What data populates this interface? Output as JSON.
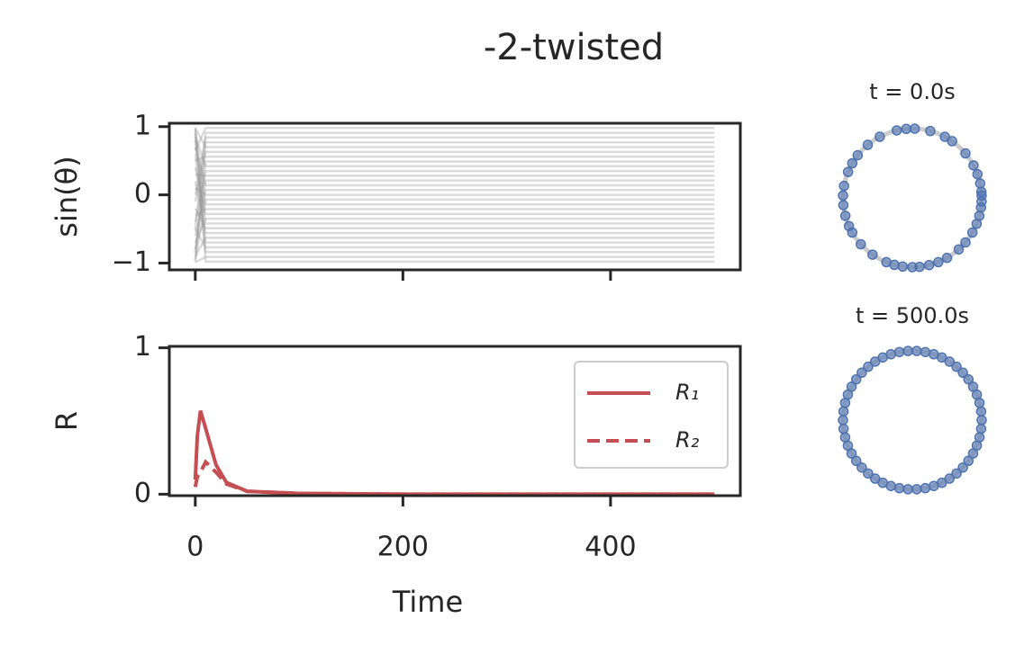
{
  "title": "-2-twisted",
  "chart_data": [
    {
      "type": "line",
      "ylabel": "sin(θ)",
      "color": "#999999",
      "opacity": 0.35,
      "xlim": [
        -25,
        525
      ],
      "xticks": [
        0,
        200,
        400
      ],
      "ylim": [
        -1.1,
        1.05
      ],
      "yticks": [
        {
          "value": -1,
          "label": "−1"
        },
        0,
        1
      ],
      "x": [
        0,
        10,
        500
      ],
      "series": [
        {
          "values": [
            0.99,
            -0.98,
            -0.98
          ]
        },
        {
          "values": [
            -0.99,
            -0.91,
            -0.91
          ]
        },
        {
          "values": [
            0.6,
            -0.84,
            -0.84
          ]
        },
        {
          "values": [
            -0.5,
            -0.77,
            -0.77
          ]
        },
        {
          "values": [
            0.9,
            -0.7,
            -0.7
          ]
        },
        {
          "values": [
            -0.9,
            -0.63,
            -0.63
          ]
        },
        {
          "values": [
            0.2,
            -0.56,
            -0.56
          ]
        },
        {
          "values": [
            -0.2,
            -0.49,
            -0.49
          ]
        },
        {
          "values": [
            0.8,
            -0.42,
            -0.42
          ]
        },
        {
          "values": [
            -0.7,
            -0.35,
            -0.35
          ]
        },
        {
          "values": [
            0.4,
            -0.28,
            -0.28
          ]
        },
        {
          "values": [
            -0.3,
            -0.21,
            -0.21
          ]
        },
        {
          "values": [
            0.95,
            -0.14,
            -0.14
          ]
        },
        {
          "values": [
            -0.95,
            -0.07,
            -0.07
          ]
        },
        {
          "values": [
            0.1,
            0,
            0
          ]
        },
        {
          "values": [
            -0.6,
            0.07,
            0.07
          ]
        },
        {
          "values": [
            0.7,
            0.14,
            0.14
          ]
        },
        {
          "values": [
            -0.8,
            0.21,
            0.21
          ]
        },
        {
          "values": [
            0.3,
            0.28,
            0.28
          ]
        },
        {
          "values": [
            -0.4,
            0.35,
            0.35
          ]
        },
        {
          "values": [
            0.85,
            0.42,
            0.42
          ]
        },
        {
          "values": [
            -0.85,
            0.49,
            0.49
          ]
        },
        {
          "values": [
            0.5,
            0.56,
            0.56
          ]
        },
        {
          "values": [
            -0.1,
            0.63,
            0.63
          ]
        },
        {
          "values": [
            0.98,
            0.7,
            0.7
          ]
        },
        {
          "values": [
            -0.98,
            0.77,
            0.77
          ]
        },
        {
          "values": [
            0.0,
            0.84,
            0.84
          ]
        },
        {
          "values": [
            -0.5,
            0.91,
            0.91
          ]
        },
        {
          "values": [
            0.65,
            0.98,
            0.98
          ]
        }
      ]
    },
    {
      "type": "line",
      "xlabel": "Time",
      "ylabel": "R",
      "legend": "upper right",
      "xlim": [
        -25,
        525
      ],
      "xticks": [
        0,
        200,
        400
      ],
      "ylim": [
        -0.01,
        1.01
      ],
      "yticks": [
        0,
        1
      ],
      "x": [
        0,
        2,
        5,
        10,
        20,
        30,
        50,
        100,
        200,
        300,
        400,
        500
      ],
      "series": [
        {
          "name": "R₁",
          "color": "#c44e52",
          "dash": false,
          "values": [
            0.1,
            0.4,
            0.57,
            0.45,
            0.2,
            0.08,
            0.02,
            0.005,
            0,
            0,
            0,
            0
          ]
        },
        {
          "name": "R₂",
          "color": "#c44e52",
          "dash": true,
          "values": [
            0.05,
            0.12,
            0.15,
            0.22,
            0.15,
            0.07,
            0.02,
            0.005,
            0,
            0,
            0,
            0
          ]
        }
      ]
    },
    {
      "type": "phase-circle",
      "title": "t = 0.0s",
      "color": "#4c72b0",
      "ring_color": "#cccccc",
      "theta_deg": [
        5,
        12,
        20,
        28,
        40,
        55,
        62,
        75,
        88,
        95,
        103,
        118,
        130,
        142,
        150,
        158,
        170,
        178,
        186,
        195,
        204,
        210,
        222,
        235,
        248,
        255,
        262,
        270,
        276,
        284,
        292,
        300,
        312,
        320,
        330,
        338,
        345,
        352,
        357,
        2
      ]
    },
    {
      "type": "phase-circle",
      "title": "t = 500.0s",
      "color": "#4c72b0",
      "ring_color": "#cccccc",
      "theta_deg": [
        0,
        7.2,
        14.4,
        21.6,
        28.8,
        36,
        43.2,
        50.4,
        57.6,
        64.8,
        72,
        79.2,
        86.4,
        93.6,
        100.8,
        108,
        115.2,
        122.4,
        129.6,
        136.8,
        144,
        151.2,
        158.4,
        165.6,
        172.8,
        180,
        187.2,
        194.4,
        201.6,
        208.8,
        216,
        223.2,
        230.4,
        237.6,
        244.8,
        252,
        259.2,
        266.4,
        273.6,
        280.8,
        288,
        295.2,
        302.4,
        309.6,
        316.8,
        324,
        331.2,
        338.4,
        345.6,
        352.8
      ]
    }
  ]
}
